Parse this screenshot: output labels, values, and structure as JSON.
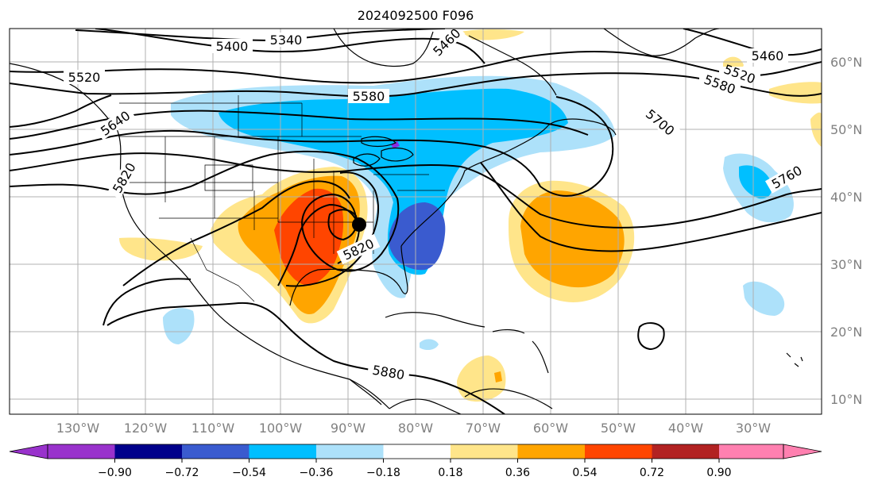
{
  "title": "2024092500 F096",
  "map": {
    "projection": "lat-lon",
    "extent": {
      "lon": [
        -137,
        -22
      ],
      "lat": [
        8,
        65
      ]
    },
    "grid": true,
    "lon_labels": [
      "130°W",
      "120°W",
      "110°W",
      "100°W",
      "90°W",
      "80°W",
      "70°W",
      "60°W",
      "50°W",
      "40°W",
      "30°W"
    ],
    "lat_labels": [
      "60°N",
      "50°N",
      "40°N",
      "30°N",
      "20°N",
      "10°N"
    ],
    "contour_labels": [
      "5340",
      "5400",
      "5460",
      "5520",
      "5580",
      "5640",
      "5700",
      "5760",
      "5820",
      "5880"
    ],
    "low_center_marker": "black-dot"
  },
  "colorbar": {
    "ticks": [
      "−0.90",
      "−0.72",
      "−0.54",
      "−0.36",
      "−0.18",
      "0.18",
      "0.36",
      "0.54",
      "0.72",
      "0.90"
    ],
    "colors": [
      "#9932cc",
      "#00008b",
      "#3a5bcf",
      "#00bfff",
      "#ade1fa",
      "#ffffff",
      "#ffe58a",
      "#ffa500",
      "#ff4500",
      "#b22222",
      "#ff80b0"
    ]
  },
  "colors": {
    "contour": "#000000",
    "coast": "#000000",
    "grid": "#b0b0b0"
  }
}
